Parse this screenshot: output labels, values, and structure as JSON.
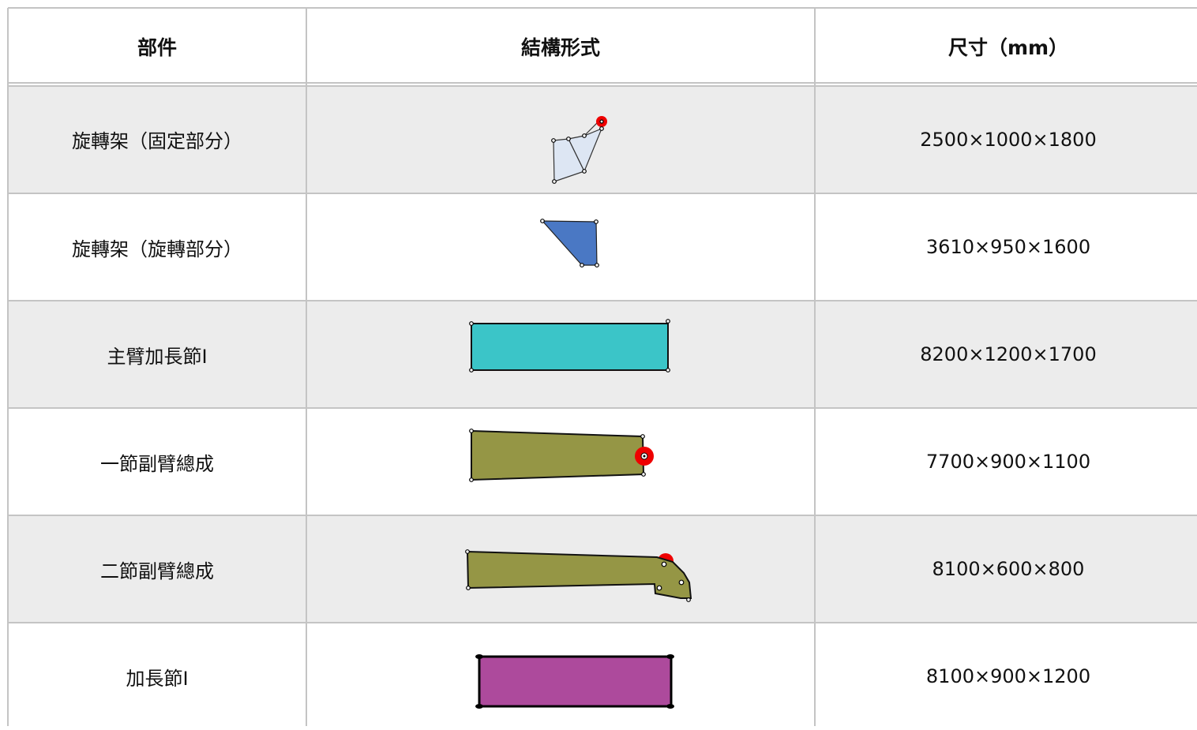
{
  "table": {
    "header": [
      "部件",
      "結構形式",
      "尺寸（mm）"
    ],
    "rows": [
      {
        "part": "旋轉架（固定部分）",
        "size": "2500×1000×1800"
      },
      {
        "part": "旋轉架（旋轉部分）",
        "size": "3610×950×1600"
      },
      {
        "part": "主臂加長節I",
        "size": "8200×1200×1700"
      },
      {
        "part": "一節副臂總成",
        "size": "7700×900×1100"
      },
      {
        "part": "二節副臂總成",
        "size": "8100×600×800"
      },
      {
        "part": "加長節I",
        "size": "8100×900×1200"
      }
    ]
  }
}
